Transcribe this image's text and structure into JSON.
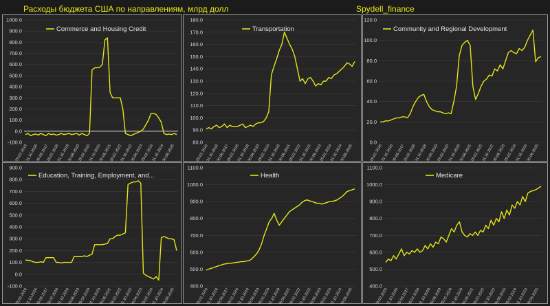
{
  "header": {
    "title": "Расходы бюджета США по направлениям, млрд долл",
    "credit": "Spydell_finance"
  },
  "colors": {
    "background": "#1b1b1b",
    "panel": "#262626",
    "line": "#e6e619",
    "grid": "#3e3e3e",
    "zero_line": "#ffffff",
    "panel_border": "#9a9a9a"
  },
  "chart_data": [
    {
      "type": "line",
      "title": "Commerce and Housing Credit",
      "ylim": [
        -100,
        1000
      ],
      "yticks": [
        -100,
        0,
        100,
        200,
        300,
        400,
        500,
        600,
        700,
        800,
        900,
        1000
      ],
      "zero_line": true,
      "x_labels": [
        "29.02.2016",
        "31.10.2016",
        "30.06.2017",
        "28.02.2018",
        "31.10.2018",
        "30.06.2019",
        "29.02.2020",
        "31.10.2020",
        "30.06.2021",
        "28.02.2022",
        "31.10.2022",
        "30.06.2023",
        "29.02.2024",
        "31.10.2024",
        "30.06.2025"
      ],
      "series": [
        {
          "name": "Commerce and Housing Credit",
          "values": [
            -30,
            -20,
            -40,
            -30,
            -25,
            -35,
            -20,
            -30,
            -40,
            -20,
            -30,
            -25,
            -35,
            -30,
            -20,
            -30,
            -25,
            -20,
            -30,
            -25,
            -20,
            -35,
            -20,
            -30,
            -40,
            -20,
            550,
            570,
            570,
            575,
            600,
            820,
            840,
            350,
            300,
            300,
            300,
            300,
            200,
            -20,
            -30,
            -40,
            -30,
            -20,
            -10,
            0,
            20,
            60,
            100,
            160,
            160,
            150,
            120,
            80,
            -20,
            -30,
            -25,
            -30,
            -20,
            -30
          ]
        }
      ]
    },
    {
      "type": "line",
      "title": "Transportation",
      "ylim": [
        80,
        180
      ],
      "yticks": [
        80,
        90,
        100,
        110,
        120,
        130,
        140,
        150,
        160,
        170,
        180
      ],
      "x_labels": [
        "29.02.2016",
        "31.10.2016",
        "30.06.2017",
        "28.02.2018",
        "31.10.2018",
        "30.06.2019",
        "29.02.2020",
        "31.10.2020",
        "30.06.2021",
        "28.02.2022",
        "31.10.2022",
        "30.06.2023",
        "29.02.2024",
        "31.10.2024",
        "30.06.2025"
      ],
      "series": [
        {
          "name": "Transportation",
          "values": [
            91,
            92,
            91,
            93,
            94,
            92,
            93,
            95,
            92,
            94,
            93,
            93,
            93,
            94,
            95,
            92,
            93,
            94,
            93,
            95,
            96,
            96,
            97,
            100,
            105,
            135,
            142,
            148,
            155,
            160,
            170,
            165,
            160,
            156,
            150,
            140,
            130,
            132,
            128,
            132,
            133,
            130,
            126,
            128,
            127,
            130,
            130,
            133,
            132,
            135,
            136,
            138,
            140,
            142,
            145,
            144,
            142,
            146
          ]
        }
      ]
    },
    {
      "type": "line",
      "title": "Community and Regional Development",
      "ylim": [
        0,
        120
      ],
      "yticks": [
        0,
        20,
        40,
        60,
        80,
        100,
        120
      ],
      "x_labels": [
        "29.02.2016",
        "31.10.2016",
        "30.06.2017",
        "28.02.2018",
        "31.10.2018",
        "30.06.2019",
        "29.02.2020",
        "31.10.2020",
        "30.06.2021",
        "28.02.2022",
        "31.10.2022",
        "30.06.2023",
        "29.02.2024",
        "31.10.2024",
        "30.06.2025"
      ],
      "series": [
        {
          "name": "Community and Regional Development",
          "values": [
            20,
            20,
            21,
            21,
            22,
            23,
            24,
            24,
            25,
            25,
            24,
            28,
            35,
            40,
            44,
            46,
            47,
            40,
            35,
            32,
            31,
            30,
            30,
            29,
            28,
            29,
            28,
            40,
            55,
            85,
            95,
            98,
            100,
            95,
            55,
            42,
            48,
            55,
            60,
            62,
            66,
            65,
            72,
            70,
            76,
            72,
            80,
            88,
            90,
            88,
            87,
            92,
            90,
            93,
            100,
            105,
            110,
            79,
            83,
            84
          ]
        }
      ]
    },
    {
      "type": "line",
      "title": "Education, Training, Employment, and...",
      "ylim": [
        -100,
        900
      ],
      "yticks": [
        -100,
        0,
        100,
        200,
        300,
        400,
        500,
        600,
        700,
        800,
        900
      ],
      "x_labels": [
        "29.02.2016",
        "31.10.2016",
        "30.06.2017",
        "28.02.2018",
        "31.10.2018",
        "30.06.2019",
        "29.02.2020",
        "31.10.2020",
        "30.06.2021",
        "28.02.2022",
        "31.10.2022",
        "30.06.2023",
        "29.02.2024",
        "31.10.2024",
        "30.06.2025"
      ],
      "series": [
        {
          "name": "Education, Training, Employment, and...",
          "values": [
            120,
            118,
            115,
            105,
            100,
            100,
            105,
            100,
            140,
            140,
            140,
            140,
            100,
            100,
            95,
            100,
            100,
            100,
            100,
            150,
            150,
            150,
            150,
            155,
            150,
            160,
            170,
            250,
            250,
            250,
            250,
            255,
            260,
            300,
            300,
            320,
            330,
            330,
            340,
            350,
            760,
            770,
            780,
            780,
            790,
            770,
            10,
            -10,
            -20,
            -30,
            -40,
            -20,
            -50,
            310,
            320,
            310,
            300,
            300,
            290,
            200
          ]
        }
      ]
    },
    {
      "type": "line",
      "title": "Health",
      "ylim": [
        400,
        1100
      ],
      "yticks": [
        400,
        500,
        600,
        700,
        800,
        900,
        1000,
        1100
      ],
      "x_labels": [
        "29.02.2016",
        "31.10.2016",
        "30.06.2017",
        "28.02.2018",
        "31.10.2018",
        "30.06.2019",
        "29.02.2020",
        "31.10.2020",
        "30.06.2021",
        "28.02.2022",
        "31.10.2022",
        "30.06.2023",
        "29.02.2024",
        "31.10.2024",
        "30.06.2025"
      ],
      "series": [
        {
          "name": "Health",
          "values": [
            495,
            500,
            505,
            510,
            515,
            520,
            525,
            530,
            532,
            535,
            535,
            538,
            540,
            542,
            545,
            545,
            548,
            550,
            560,
            575,
            590,
            615,
            650,
            700,
            740,
            780,
            800,
            830,
            790,
            760,
            780,
            800,
            820,
            840,
            850,
            860,
            870,
            880,
            895,
            905,
            910,
            905,
            900,
            895,
            890,
            890,
            885,
            890,
            895,
            900,
            900,
            905,
            910,
            920,
            930,
            945,
            960,
            965,
            970,
            975
          ]
        }
      ]
    },
    {
      "type": "line",
      "title": "Medicare",
      "ylim": [
        400,
        1100
      ],
      "yticks": [
        400,
        500,
        600,
        700,
        800,
        900,
        1000,
        1100
      ],
      "x_labels": [
        "29.02.2016",
        "31.10.2016",
        "30.06.2017",
        "28.02.2018",
        "31.10.2018",
        "30.06.2019",
        "29.02.2020",
        "31.10.2020",
        "30.06.2021",
        "28.02.2022",
        "31.10.2022",
        "30.06.2023",
        "29.02.2024",
        "31.10.2024",
        "30.06.2025"
      ],
      "series": [
        {
          "name": "Medicare",
          "values": [
            540,
            560,
            550,
            580,
            560,
            590,
            620,
            580,
            600,
            590,
            610,
            600,
            620,
            600,
            610,
            640,
            620,
            650,
            630,
            660,
            650,
            690,
            680,
            660,
            700,
            740,
            720,
            760,
            780,
            720,
            700,
            690,
            710,
            700,
            720,
            700,
            730,
            720,
            760,
            740,
            790,
            760,
            800,
            780,
            840,
            800,
            850,
            820,
            880,
            860,
            900,
            880,
            930,
            900,
            950,
            960,
            965,
            970,
            980,
            990
          ]
        }
      ]
    }
  ]
}
